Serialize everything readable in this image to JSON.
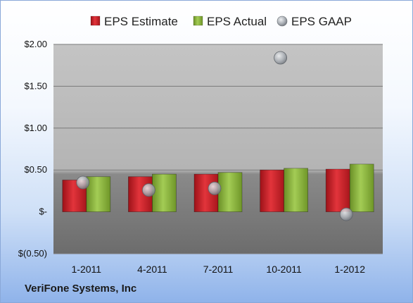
{
  "company_name": "VeriFone Systems, Inc",
  "colors": {
    "estimate": "#cc2027",
    "actual": "#8bb63d",
    "gaap": "#a9aeb4"
  },
  "chart_data": {
    "type": "bar",
    "categories": [
      "1-2011",
      "4-2011",
      "7-2011",
      "10-2011",
      "1-2012"
    ],
    "series": [
      {
        "name": "EPS Estimate",
        "type": "bar",
        "values": [
          0.38,
          0.42,
          0.45,
          0.5,
          0.51
        ]
      },
      {
        "name": "EPS Actual",
        "type": "bar",
        "values": [
          0.42,
          0.45,
          0.47,
          0.52,
          0.57
        ]
      },
      {
        "name": "EPS GAAP",
        "type": "scatter",
        "values": [
          0.35,
          0.26,
          0.28,
          1.84,
          -0.03
        ]
      }
    ],
    "ylim": [
      -0.5,
      2.0
    ],
    "y_ticks": [
      2.0,
      1.5,
      1.0,
      0.5,
      0,
      -0.5
    ],
    "y_tick_labels": [
      "$2.00",
      "$1.50",
      "$1.00",
      "$0.50",
      "$-",
      "$(0.50)"
    ],
    "grid": true,
    "legend": "top"
  }
}
